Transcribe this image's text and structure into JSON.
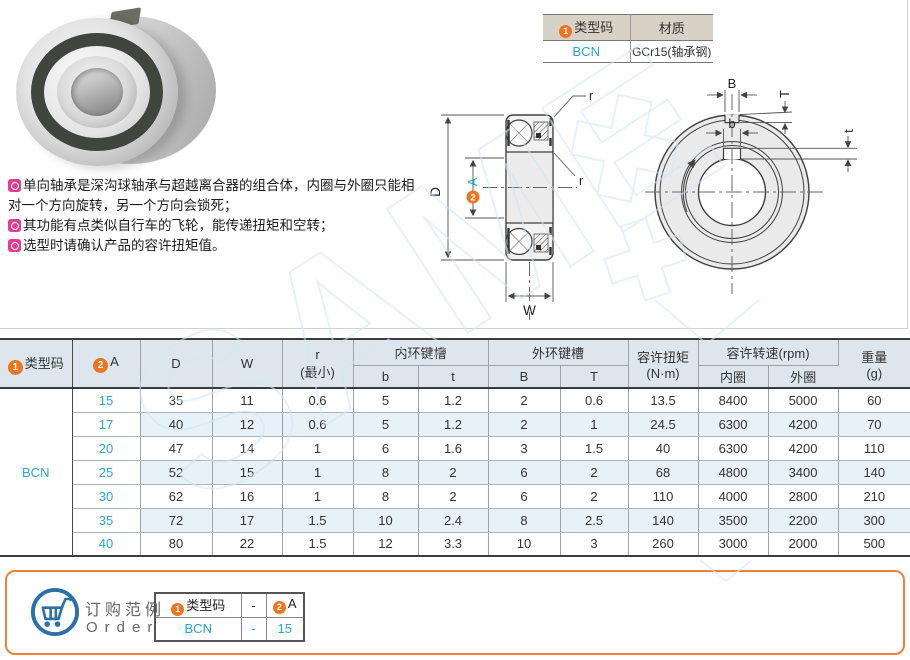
{
  "colors": {
    "accent_orange": "#ee7420",
    "link_blue": "#29a3d8",
    "table_header_bg": "#dce6ec",
    "mini_header_bg": "#d8d1c6",
    "alt_row_bg": "#e7f1f8",
    "order_border_orange": "#ef8137",
    "cart_blue": "#2b70a9",
    "bullet_pink": "#e63c8c",
    "watermark_blue": "#d3e6f3"
  },
  "watermark": {
    "text": "SAME"
  },
  "type_table": {
    "badge1": "1",
    "col1_header": "类型码",
    "col2_header": "材质",
    "type_code": "BCN",
    "material": "GCr15(轴承钢)"
  },
  "description": {
    "items": [
      "单向轴承是深沟球轴承与超越离合器的组合体，内圈与外圈只能相对一个方向旋转，另一个方向会锁死；",
      "其功能有点类似自行车的飞轮，能传递扭矩和空转；",
      "选型时请确认产品的容许扭矩值。"
    ]
  },
  "side_view": {
    "labels": {
      "D": "D",
      "badge2": "2",
      "A": "A",
      "W": "W",
      "r_top": "r",
      "r_mid": "r"
    }
  },
  "front_view": {
    "labels": {
      "B": "B",
      "T": "T",
      "b": "b",
      "t": "t"
    }
  },
  "main_table": {
    "headers": {
      "badge1": "1",
      "type_code": "类型码",
      "badge2": "2",
      "a": "A",
      "d": "D",
      "w": "W",
      "r_line1": "r",
      "r_line2": "(最小)",
      "inner_keyway": "内环键槽",
      "b": "b",
      "t": "t",
      "outer_keyway": "外环键槽",
      "B": "B",
      "T": "T",
      "torque_line1": "容许扭矩",
      "torque_line2": "(N·m)",
      "speed": "容许转速(rpm)",
      "inner_ring": "内圈",
      "outer_ring": "外圈",
      "weight_line1": "重量",
      "weight_line2": "(g)"
    },
    "type_code": "BCN",
    "rows": [
      {
        "values": [
          "15",
          "35",
          "11",
          "0.6",
          "5",
          "1.2",
          "2",
          "0.6",
          "13.5",
          "8400",
          "5000",
          "60"
        ]
      },
      {
        "values": [
          "17",
          "40",
          "12",
          "0.6",
          "5",
          "1.2",
          "2",
          "1",
          "24.5",
          "6300",
          "4200",
          "70"
        ]
      },
      {
        "values": [
          "20",
          "47",
          "14",
          "1",
          "6",
          "1.6",
          "3",
          "1.5",
          "40",
          "6300",
          "4200",
          "110"
        ]
      },
      {
        "values": [
          "25",
          "52",
          "15",
          "1",
          "8",
          "2",
          "6",
          "2",
          "68",
          "4800",
          "3400",
          "140"
        ]
      },
      {
        "values": [
          "30",
          "62",
          "16",
          "1",
          "8",
          "2",
          "6",
          "2",
          "110",
          "4000",
          "2800",
          "210"
        ]
      },
      {
        "values": [
          "35",
          "72",
          "17",
          "1.5",
          "10",
          "2.4",
          "8",
          "2.5",
          "140",
          "3500",
          "2200",
          "300"
        ]
      },
      {
        "values": [
          "40",
          "80",
          "22",
          "1.5",
          "12",
          "3.3",
          "10",
          "3",
          "260",
          "3000",
          "2000",
          "500"
        ]
      }
    ]
  },
  "order_section": {
    "title": "订购范例",
    "subtitle": "Order",
    "table": {
      "badge1": "1",
      "header_col1": "类型码",
      "header_col2": "-",
      "badge2": "2",
      "header_col3": "A",
      "row_col1": "BCN",
      "row_col2": "-",
      "row_col3": "15"
    }
  }
}
